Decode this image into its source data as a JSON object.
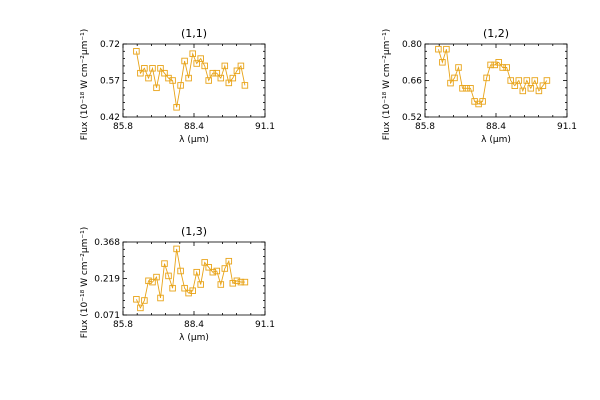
{
  "style": {
    "series_color": "#E8A317"
  },
  "chart_data": [
    {
      "type": "line",
      "title": "(1,1)",
      "xlabel_text": "λ (μm)",
      "ylabel_text": "Flux (10⁻¹⁸ W cm⁻²μm⁻¹)",
      "xlim": [
        85.8,
        91.1
      ],
      "ylim": [
        0.42,
        0.72
      ],
      "xticks": [
        "85.8",
        "88.4",
        "91.1"
      ],
      "yticks": [
        "0.72",
        "0.57",
        "0.42"
      ],
      "series": [
        {
          "x": [
            86.3,
            86.45,
            86.6,
            86.75,
            86.9,
            87.05,
            87.2,
            87.35,
            87.5,
            87.65,
            87.8,
            87.95,
            88.1,
            88.25,
            88.4,
            88.55,
            88.7,
            88.85,
            89.0,
            89.15,
            89.3,
            89.45,
            89.6,
            89.75,
            89.9,
            90.05,
            90.2,
            90.35
          ],
          "y": [
            0.69,
            0.6,
            0.62,
            0.58,
            0.62,
            0.54,
            0.62,
            0.6,
            0.58,
            0.57,
            0.46,
            0.55,
            0.65,
            0.58,
            0.68,
            0.64,
            0.66,
            0.63,
            0.57,
            0.6,
            0.6,
            0.58,
            0.63,
            0.56,
            0.58,
            0.61,
            0.63,
            0.55
          ]
        }
      ]
    },
    {
      "type": "line",
      "title": "(1,2)",
      "xlabel_text": "λ (μm)",
      "ylabel_text": "Flux (10⁻¹⁸ W cm⁻²μm⁻¹)",
      "xlim": [
        85.8,
        91.1
      ],
      "ylim": [
        0.52,
        0.8
      ],
      "xticks": [
        "85.8",
        "88.4",
        "91.1"
      ],
      "yticks": [
        "0.80",
        "0.66",
        "0.52"
      ],
      "series": [
        {
          "x": [
            86.3,
            86.45,
            86.6,
            86.75,
            86.9,
            87.05,
            87.2,
            87.35,
            87.5,
            87.65,
            87.8,
            87.95,
            88.1,
            88.25,
            88.4,
            88.55,
            88.7,
            88.85,
            89.0,
            89.15,
            89.3,
            89.45,
            89.6,
            89.75,
            89.9,
            90.05,
            90.2,
            90.35
          ],
          "y": [
            0.78,
            0.73,
            0.78,
            0.65,
            0.67,
            0.71,
            0.63,
            0.63,
            0.63,
            0.58,
            0.57,
            0.58,
            0.67,
            0.72,
            0.72,
            0.73,
            0.71,
            0.71,
            0.66,
            0.64,
            0.66,
            0.62,
            0.66,
            0.63,
            0.66,
            0.62,
            0.64,
            0.66
          ]
        }
      ]
    },
    {
      "type": "line",
      "title": "(1,3)",
      "xlabel_text": "λ (μm)",
      "ylabel_text": "Flux (10⁻¹⁸ W cm⁻²μm⁻¹)",
      "xlim": [
        85.8,
        91.1
      ],
      "ylim": [
        0.071,
        0.368
      ],
      "xticks": [
        "85.8",
        "88.4",
        "91.1"
      ],
      "yticks": [
        "0.368",
        "0.219",
        "0.071"
      ],
      "series": [
        {
          "x": [
            86.3,
            86.45,
            86.6,
            86.75,
            86.9,
            87.05,
            87.2,
            87.35,
            87.5,
            87.65,
            87.8,
            87.95,
            88.1,
            88.25,
            88.4,
            88.55,
            88.7,
            88.85,
            89.0,
            89.15,
            89.3,
            89.45,
            89.6,
            89.75,
            89.9,
            90.05,
            90.2,
            90.35
          ],
          "y": [
            0.135,
            0.1,
            0.13,
            0.21,
            0.205,
            0.225,
            0.14,
            0.28,
            0.23,
            0.18,
            0.34,
            0.25,
            0.18,
            0.16,
            0.17,
            0.245,
            0.195,
            0.285,
            0.265,
            0.245,
            0.25,
            0.195,
            0.26,
            0.29,
            0.2,
            0.21,
            0.205,
            0.205
          ]
        }
      ]
    }
  ]
}
